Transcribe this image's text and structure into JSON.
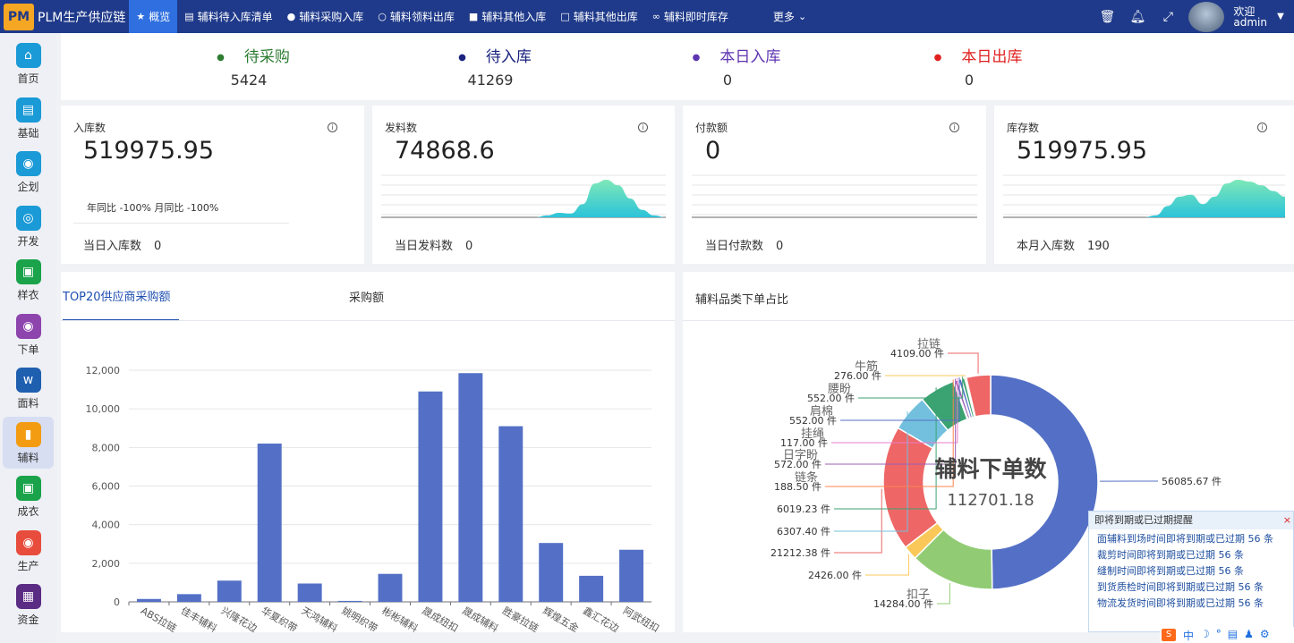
{
  "app": {
    "logo_text": "PM",
    "title": "PLM生产供应链"
  },
  "nav": {
    "tabs": [
      {
        "label": "概览",
        "icon": "star-icon",
        "active": true
      },
      {
        "label": "辅料待入库清单",
        "icon": "document-icon"
      },
      {
        "label": "辅料采购入库",
        "icon": "dot-icon"
      },
      {
        "label": "辅料领料出库",
        "icon": "circle-icon"
      },
      {
        "label": "辅料其他入库",
        "icon": "bookmark-icon"
      },
      {
        "label": "辅料其他出库",
        "icon": "bookmark-outline-icon"
      },
      {
        "label": "辅料即时库存",
        "icon": "link-icon"
      },
      {
        "label": "更多",
        "icon": "chevron-down-icon"
      }
    ]
  },
  "user": {
    "welcome": "欢迎",
    "name": "admin"
  },
  "sidebar": {
    "items": [
      {
        "label": "首页",
        "icon": "home-icon",
        "color": "#1a9ad6"
      },
      {
        "label": "基础",
        "icon": "book-icon",
        "color": "#1a9ad6"
      },
      {
        "label": "企划",
        "icon": "bubble-icon",
        "color": "#1a9ad6"
      },
      {
        "label": "开发",
        "icon": "compass-icon",
        "color": "#1a9ad6"
      },
      {
        "label": "样衣",
        "icon": "shirt-icon",
        "color": "#1aa34a"
      },
      {
        "label": "下单",
        "icon": "disc-icon",
        "color": "#8e44ad"
      },
      {
        "label": "面料",
        "icon": "fabric-icon",
        "color": "#1f5fb0"
      },
      {
        "label": "辅料",
        "icon": "accessory-icon",
        "color": "#f39c12",
        "active": true
      },
      {
        "label": "成衣",
        "icon": "garment-icon",
        "color": "#1aa34a"
      },
      {
        "label": "生产",
        "icon": "production-icon",
        "color": "#e74c3c"
      },
      {
        "label": "资金",
        "icon": "fund-icon",
        "color": "#5b2c83"
      }
    ]
  },
  "stats": [
    {
      "label": "待采购",
      "value": "5424",
      "color": "#2e7d32"
    },
    {
      "label": "待入库",
      "value": "41269",
      "color": "#1a237e"
    },
    {
      "label": "本日入库",
      "value": "0",
      "color": "#5e35b1"
    },
    {
      "label": "本日出库",
      "value": "0",
      "color": "#e02020"
    }
  ],
  "kpis": [
    {
      "name": "入库数",
      "value": "519975.95",
      "extra": "年同比 -100% 月同比 -100%",
      "footer_label": "当日入库数",
      "footer_value": "0",
      "sparkline": []
    },
    {
      "name": "发料数",
      "value": "74868.6",
      "extra": "",
      "footer_label": "当日发料数",
      "footer_value": "0",
      "sparkline": [
        0,
        0,
        0,
        0,
        0,
        0,
        0,
        0,
        0,
        0,
        0,
        0,
        0,
        0,
        0.05,
        0.12,
        0.1,
        0.35,
        0.9,
        1,
        0.85,
        0.5,
        0.2,
        0.05,
        0
      ]
    },
    {
      "name": "付款额",
      "value": "0",
      "extra": "",
      "footer_label": "当日付款数",
      "footer_value": "0",
      "sparkline": []
    },
    {
      "name": "库存数",
      "value": "519975.95",
      "extra": "",
      "footer_label": "本月入库数",
      "footer_value": "190",
      "sparkline": [
        0,
        0,
        0,
        0,
        0,
        0,
        0,
        0,
        0,
        0,
        0,
        0,
        0,
        0.05,
        0.3,
        0.55,
        0.6,
        0.35,
        0.55,
        0.9,
        1,
        0.95,
        0.85,
        0.7,
        0.55
      ]
    }
  ],
  "bar_panel": {
    "tabs": [
      {
        "label": "TOP20供应商采购额",
        "active": true
      },
      {
        "label": "采购额"
      }
    ]
  },
  "pie_panel": {
    "title": "辅料品类下单占比"
  },
  "chart_data": [
    {
      "type": "bar",
      "categories": [
        "ABS拉链",
        "佳丰辅料",
        "兴隆花边",
        "华夏织带",
        "天鸿辅料",
        "姚明织带",
        "彬彬辅料",
        "晟成纽扣",
        "晟成辅料",
        "胜豪拉链",
        "辉煌五金",
        "鑫汇花边",
        "阿武纽扣"
      ],
      "values": [
        150,
        400,
        1100,
        8200,
        950,
        50,
        1450,
        10900,
        11850,
        9100,
        3050,
        1350,
        2700
      ],
      "ylim": [
        0,
        12000
      ],
      "yticks": [
        0,
        2000,
        4000,
        6000,
        8000,
        10000,
        12000
      ],
      "ytick_labels": [
        "0",
        "2,000",
        "4,000",
        "6,000",
        "8,000",
        "10,000",
        "12,000"
      ],
      "color": "#5470c6",
      "grid": true
    },
    {
      "type": "pie",
      "center_title": "辅料下单数",
      "center_value": "112701.18",
      "slices": [
        {
          "name": "",
          "value": 56085.67,
          "label": "56085.67 件",
          "color": "#5470c6"
        },
        {
          "name": "扣子",
          "value": 14284.0,
          "label": "14284.00 件",
          "color": "#91cc75"
        },
        {
          "name": "",
          "value": 2426.0,
          "label": "2426.00 件",
          "color": "#fac858"
        },
        {
          "name": "",
          "value": 21212.38,
          "label": "21212.38 件",
          "color": "#ee6666"
        },
        {
          "name": "",
          "value": 6307.4,
          "label": "6307.40 件",
          "color": "#73c0de"
        },
        {
          "name": "",
          "value": 6019.23,
          "label": "6019.23 件",
          "color": "#3ba272"
        },
        {
          "name": "链条",
          "value": 188.5,
          "label": "188.50 件",
          "color": "#fc8452"
        },
        {
          "name": "日字盼",
          "value": 572.0,
          "label": "572.00 件",
          "color": "#9a60b4"
        },
        {
          "name": "挂绳",
          "value": 117.0,
          "label": "117.00 件",
          "color": "#ea7ccc"
        },
        {
          "name": "肩棉",
          "value": 552.0,
          "label": "552.00 件",
          "color": "#5470c6"
        },
        {
          "name": "腰盼",
          "value": 552.0,
          "label": "552.00 件",
          "color": "#3ba272"
        },
        {
          "name": "牛筋",
          "value": 276.0,
          "label": "276.00 件",
          "color": "#fac858"
        },
        {
          "name": "拉链",
          "value": 4109.0,
          "label": "4109.00 件",
          "color": "#ee6666"
        }
      ]
    }
  ],
  "alerts": {
    "title": "即将到期或已过期提醒",
    "close": "×",
    "items": [
      "面辅料到场时间即将到期或已过期 56 条",
      "裁剪时间即将到期或已过期 56 条",
      "缝制时间即将到期或已过期 56 条",
      "到货质检时间即将到期或已过期 56 条",
      "物流发货时间即将到期或已过期 56 条"
    ]
  },
  "tray": {
    "items": [
      "中",
      "☽",
      "°",
      "▤",
      "♟",
      "⚙"
    ]
  }
}
